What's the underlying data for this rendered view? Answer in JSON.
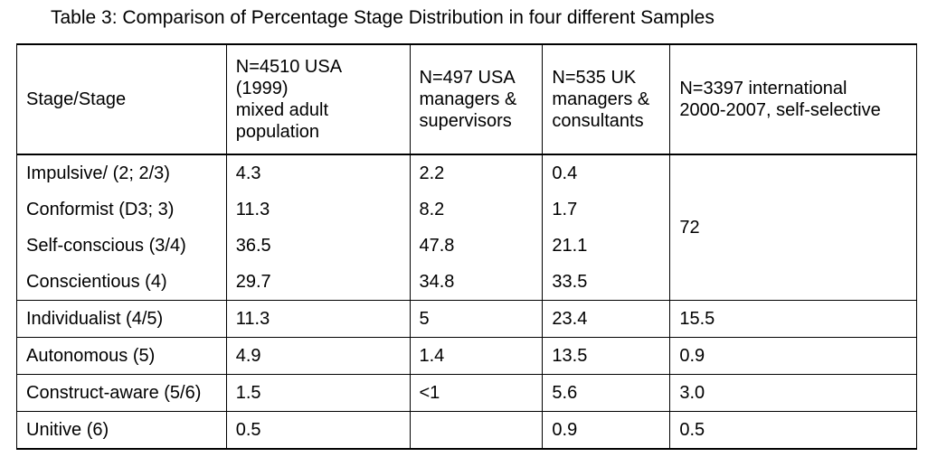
{
  "caption": "Table 3: Comparison of Percentage Stage Distribution in four different Samples",
  "headers": [
    {
      "lines": [
        "Stage/Stage"
      ]
    },
    {
      "lines": [
        "N=4510 USA",
        "(1999)",
        "mixed adult",
        "population"
      ]
    },
    {
      "lines": [
        "N=497 USA",
        "managers &",
        "supervisors"
      ]
    },
    {
      "lines": [
        "N=535 UK",
        "managers &",
        "consultants"
      ]
    },
    {
      "lines": [
        "N=3397 international",
        "2000-2007, self-selective"
      ]
    }
  ],
  "rows": [
    {
      "stage": "Impulsive/ (2; 2/3)",
      "usa1999": "4.3",
      "usa_managers": "2.2",
      "uk_managers": "0.4"
    },
    {
      "stage": "Conformist (D3; 3)",
      "usa1999": "11.3",
      "usa_managers": "8.2",
      "uk_managers": "1.7"
    },
    {
      "stage": "Self-conscious (3/4)",
      "usa1999": "36.5",
      "usa_managers": "47.8",
      "uk_managers": "21.1"
    },
    {
      "stage": "Conscientious (4)",
      "usa1999": "29.7",
      "usa_managers": "34.8",
      "uk_managers": "33.5"
    },
    {
      "stage": "Individualist (4/5)",
      "usa1999": "11.3",
      "usa_managers": "5",
      "uk_managers": "23.4",
      "international": "15.5"
    },
    {
      "stage": "Autonomous (5)",
      "usa1999": "4.9",
      "usa_managers": "1.4",
      "uk_managers": "13.5",
      "international": "0.9"
    },
    {
      "stage": "Construct-aware (5/6)",
      "usa1999": "1.5",
      "usa_managers": "<1",
      "uk_managers": "5.6",
      "international": "3.0"
    },
    {
      "stage": "Unitive (6)",
      "usa1999": "0.5",
      "usa_managers": "",
      "uk_managers": "0.9",
      "international": "0.5"
    }
  ],
  "merged_international_value": "72"
}
